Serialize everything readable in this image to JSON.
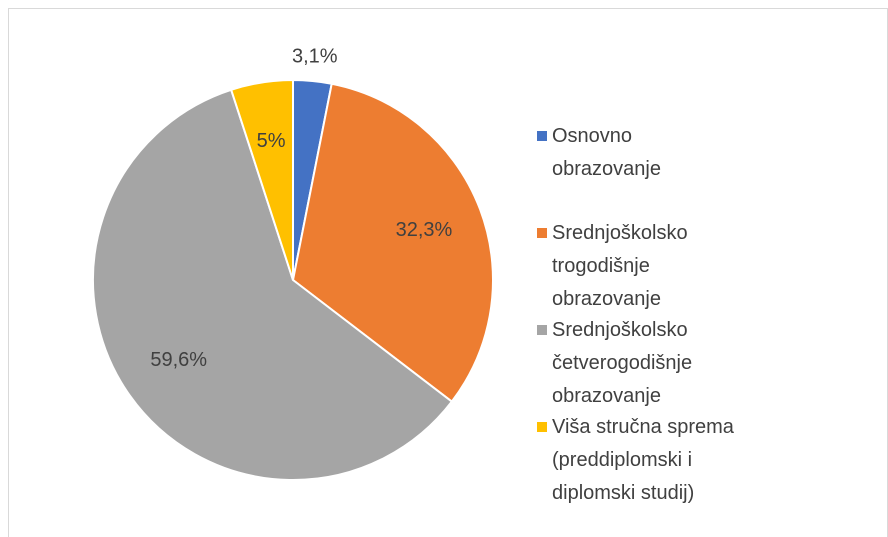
{
  "chart_data": {
    "type": "pie",
    "categories": [
      "Osnovno obrazovanje",
      "Srednjoškolsko trogodišnje obrazovanje",
      "Srednjoškolsko četverogodišnje obrazovanje",
      "Viša stručna sprema (preddiplomski i diplomski studij)"
    ],
    "values": [
      3.1,
      32.3,
      59.6,
      5
    ],
    "value_labels": [
      "3,1%",
      "32,3%",
      "59,6%",
      "5%"
    ],
    "colors": [
      "#4472c4",
      "#ed7d31",
      "#a5a5a5",
      "#ffc000"
    ],
    "legend": "right"
  }
}
